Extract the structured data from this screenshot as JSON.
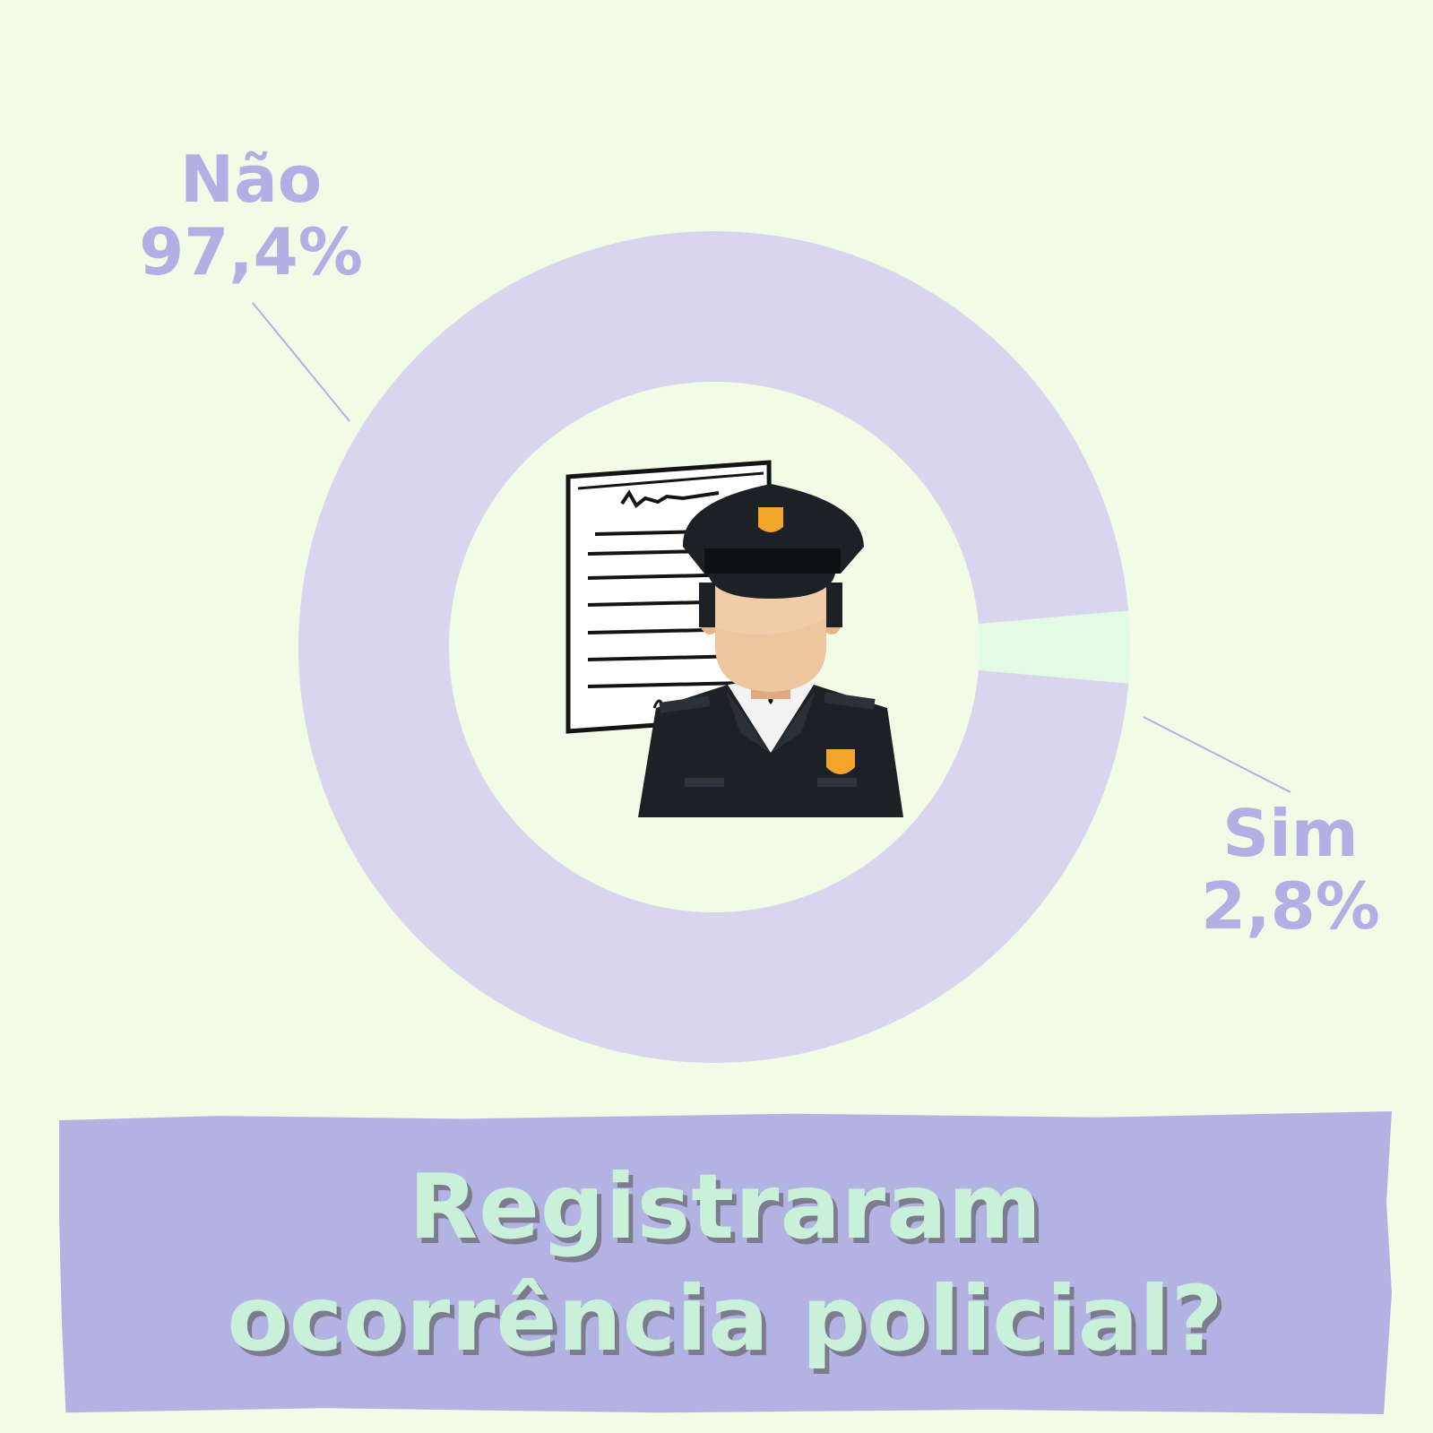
{
  "chart_data": {
    "type": "pie",
    "style": "donut",
    "title": "Registraram ocorrência policial?",
    "slices": [
      {
        "label": "Não",
        "value_text": "97,4%",
        "value": 97.4,
        "color": "#d9d5ef"
      },
      {
        "label": "Sim",
        "value_text": "2,8%",
        "value": 2.8,
        "color": "#e3fbe4"
      }
    ],
    "leader_line_color": "#b3aee3",
    "label_color": "#b3aee3"
  },
  "banner": {
    "line1": "Registraram",
    "line2": "ocorrência policial?",
    "background": "#b3b3e3",
    "text_color": "#c9f0d8"
  },
  "illustration": {
    "icon": "police-officer-with-report-icon"
  },
  "background": "#f0fce6"
}
